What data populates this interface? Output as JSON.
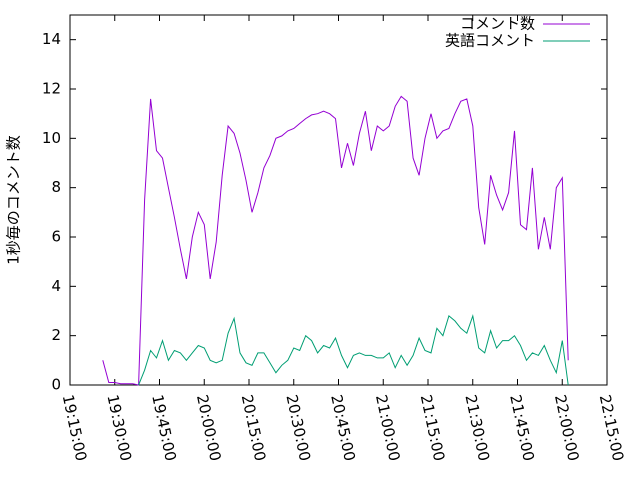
{
  "chart_data": {
    "type": "line",
    "y_label": "1秒毎のコメント数",
    "x": [
      "19:26:00",
      "19:28:00",
      "19:30:00",
      "19:32:00",
      "19:34:00",
      "19:36:00",
      "19:38:00",
      "19:40:00",
      "19:42:00",
      "19:44:00",
      "19:46:00",
      "19:48:00",
      "19:50:00",
      "19:52:00",
      "19:54:00",
      "19:56:00",
      "19:58:00",
      "20:00:00",
      "20:02:00",
      "20:04:00",
      "20:06:00",
      "20:08:00",
      "20:10:00",
      "20:12:00",
      "20:14:00",
      "20:16:00",
      "20:18:00",
      "20:20:00",
      "20:22:00",
      "20:24:00",
      "20:26:00",
      "20:28:00",
      "20:30:00",
      "20:32:00",
      "20:34:00",
      "20:36:00",
      "20:38:00",
      "20:40:00",
      "20:42:00",
      "20:44:00",
      "20:46:00",
      "20:48:00",
      "20:50:00",
      "20:52:00",
      "20:54:00",
      "20:56:00",
      "20:58:00",
      "21:00:00",
      "21:02:00",
      "21:04:00",
      "21:06:00",
      "21:08:00",
      "21:10:00",
      "21:12:00",
      "21:14:00",
      "21:16:00",
      "21:18:00",
      "21:20:00",
      "21:22:00",
      "21:24:00",
      "21:26:00",
      "21:28:00",
      "21:30:00",
      "21:32:00",
      "21:34:00",
      "21:36:00",
      "21:38:00",
      "21:40:00",
      "21:42:00",
      "21:44:00",
      "21:46:00",
      "21:48:00",
      "21:50:00",
      "21:52:00",
      "21:54:00",
      "21:56:00",
      "21:58:00",
      "22:00:00",
      "22:02:00"
    ],
    "series": [
      {
        "name": "コメント数",
        "color": "#9400d3",
        "values": [
          1.0,
          0.1,
          0.1,
          0.05,
          0.05,
          0.05,
          0.0,
          7.5,
          11.6,
          9.5,
          9.2,
          8.0,
          6.8,
          5.5,
          4.3,
          6.0,
          7.0,
          6.5,
          4.3,
          5.8,
          8.5,
          10.5,
          10.2,
          9.4,
          8.3,
          7.0,
          7.8,
          8.8,
          9.3,
          10.0,
          10.1,
          10.3,
          10.4,
          10.6,
          10.8,
          10.95,
          11.0,
          11.1,
          11.0,
          10.8,
          8.8,
          9.8,
          8.9,
          10.2,
          11.1,
          9.5,
          10.5,
          10.3,
          10.5,
          11.3,
          11.7,
          11.5,
          9.2,
          8.5,
          10.0,
          11.0,
          10.0,
          10.3,
          10.4,
          11.0,
          11.5,
          11.6,
          10.5,
          7.2,
          5.7,
          8.5,
          7.7,
          7.1,
          7.8,
          10.3,
          6.5,
          6.3,
          8.8,
          5.5,
          6.8,
          5.5,
          8.0,
          8.4,
          1.0
        ]
      },
      {
        "name": "英語コメント",
        "color": "#009e73",
        "values": [
          null,
          null,
          null,
          null,
          null,
          null,
          0.0,
          0.6,
          1.4,
          1.1,
          1.8,
          1.0,
          1.4,
          1.3,
          1.0,
          1.3,
          1.6,
          1.5,
          1.0,
          0.9,
          1.0,
          2.1,
          2.7,
          1.3,
          0.9,
          0.8,
          1.3,
          1.3,
          0.9,
          0.5,
          0.8,
          1.0,
          1.5,
          1.4,
          2.0,
          1.8,
          1.3,
          1.6,
          1.5,
          1.9,
          1.2,
          0.7,
          1.2,
          1.3,
          1.2,
          1.2,
          1.1,
          1.1,
          1.3,
          0.7,
          1.2,
          0.8,
          1.2,
          1.9,
          1.4,
          1.3,
          2.3,
          2.0,
          2.8,
          2.6,
          2.3,
          2.1,
          2.8,
          1.5,
          1.3,
          2.2,
          1.5,
          1.8,
          1.8,
          2.0,
          1.6,
          1.0,
          1.3,
          1.2,
          1.6,
          1.0,
          0.5,
          1.8,
          0.0
        ]
      }
    ],
    "xlim": [
      "19:15:00",
      "22:15:00"
    ],
    "xticks": [
      "19:15:00",
      "19:30:00",
      "19:45:00",
      "20:00:00",
      "20:15:00",
      "20:30:00",
      "20:45:00",
      "21:00:00",
      "21:15:00",
      "21:30:00",
      "21:45:00",
      "22:00:00",
      "22:15:00"
    ],
    "ylim": [
      0,
      15
    ],
    "yticks": [
      0,
      2,
      4,
      6,
      8,
      10,
      12,
      14
    ],
    "legend": "top-right"
  }
}
